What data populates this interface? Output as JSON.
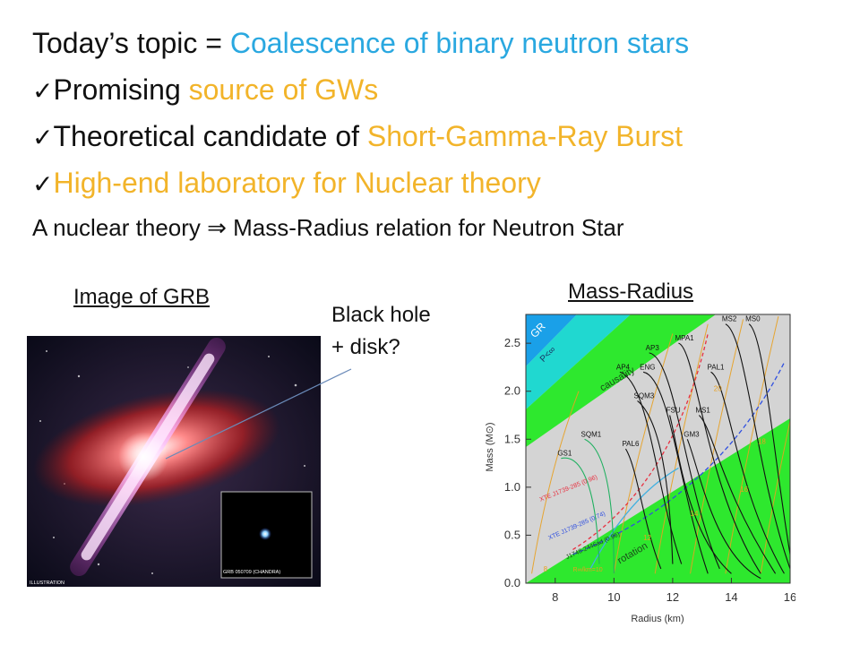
{
  "header": {
    "line1_prefix": "Today’s topic = ",
    "line1_highlight": "Coalescence of binary neutron stars",
    "line2_prefix": "Promising ",
    "line2_highlight": "source of GWs",
    "line3_prefix": "Theoretical candidate of ",
    "line3_highlight": "Short-Gamma-Ray Burst",
    "line4_highlight": "High-end laboratory for Nuclear theory",
    "line5": "A nuclear theory ⇒ Mass-Radius relation for Neutron Star",
    "check": "✓"
  },
  "grb": {
    "caption": "Image of GRB",
    "inset_label": "GRB 050709 (CHANDRA)",
    "illustration_label": "ILLUSTRATION"
  },
  "annotation": {
    "line1": "Black hole",
    "line2": "+ disk?"
  },
  "chart_data": {
    "type": "line",
    "title": "Mass-Radius",
    "xlabel": "Radius (km)",
    "ylabel": "Mass (M⊙)",
    "xlim": [
      7,
      16
    ],
    "ylim": [
      0,
      2.8
    ],
    "xticks": [
      8,
      10,
      12,
      14,
      16
    ],
    "yticks": [
      0.0,
      0.5,
      1.0,
      1.5,
      2.0,
      2.5
    ],
    "colors": {
      "background": "#d4d4d4",
      "green": "#2ee82e",
      "blue": "#1aa0e8",
      "gold": "#e8a020",
      "curve": "#111111"
    },
    "region_labels": [
      "GR",
      "P<∞",
      "causality",
      "rotation"
    ],
    "series": [
      {
        "name": "GS1",
        "points": [
          [
            8.2,
            1.3
          ],
          [
            8.9,
            1.35
          ],
          [
            9.4,
            1.0
          ],
          [
            9.5,
            0.2
          ]
        ]
      },
      {
        "name": "SQM1",
        "points": [
          [
            9.0,
            1.5
          ],
          [
            9.7,
            1.4
          ],
          [
            10.0,
            0.9
          ],
          [
            10.0,
            0.1
          ]
        ]
      },
      {
        "name": "PAL6",
        "points": [
          [
            10.4,
            1.4
          ],
          [
            10.8,
            1.2
          ],
          [
            11.0,
            0.6
          ],
          [
            11.6,
            0.15
          ]
        ]
      },
      {
        "name": "SQM3",
        "points": [
          [
            10.8,
            1.9
          ],
          [
            11.6,
            1.7
          ],
          [
            11.9,
            1.0
          ],
          [
            12.0,
            0.2
          ]
        ]
      },
      {
        "name": "FSU",
        "points": [
          [
            11.9,
            1.75
          ],
          [
            12.2,
            1.4
          ],
          [
            12.5,
            0.5
          ],
          [
            14.0,
            0.1
          ]
        ]
      },
      {
        "name": "GM3",
        "points": [
          [
            12.5,
            1.5
          ],
          [
            12.9,
            1.2
          ],
          [
            13.4,
            0.3
          ],
          [
            15.0,
            0.05
          ]
        ]
      },
      {
        "name": "AP4",
        "points": [
          [
            10.2,
            2.2
          ],
          [
            11.2,
            2.1
          ],
          [
            11.4,
            1.0
          ],
          [
            12.3,
            0.2
          ]
        ]
      },
      {
        "name": "ENG",
        "points": [
          [
            11.0,
            2.2
          ],
          [
            11.9,
            2.15
          ],
          [
            12.2,
            1.0
          ],
          [
            13.2,
            0.1
          ]
        ]
      },
      {
        "name": "AP3",
        "points": [
          [
            11.2,
            2.4
          ],
          [
            12.1,
            2.35
          ],
          [
            12.4,
            1.0
          ],
          [
            13.6,
            0.15
          ]
        ]
      },
      {
        "name": "MS1",
        "points": [
          [
            12.9,
            1.75
          ],
          [
            13.4,
            1.6
          ],
          [
            13.6,
            1.0
          ],
          [
            15.5,
            0.1
          ]
        ]
      },
      {
        "name": "MPA1",
        "points": [
          [
            12.2,
            2.5
          ],
          [
            12.8,
            2.45
          ],
          [
            13.1,
            1.0
          ],
          [
            15.0,
            0.1
          ]
        ]
      },
      {
        "name": "PAL1",
        "points": [
          [
            13.3,
            2.2
          ],
          [
            13.9,
            2.1
          ],
          [
            14.1,
            1.0
          ],
          [
            15.8,
            0.1
          ]
        ]
      },
      {
        "name": "MS2",
        "points": [
          [
            13.8,
            2.7
          ],
          [
            14.5,
            2.6
          ],
          [
            14.8,
            1.2
          ],
          [
            16.0,
            0.15
          ]
        ]
      },
      {
        "name": "MS0",
        "points": [
          [
            14.6,
            2.7
          ],
          [
            15.1,
            2.6
          ],
          [
            15.4,
            1.4
          ],
          [
            16.0,
            0.3
          ]
        ]
      }
    ],
    "constraint_labels": [
      "XTE J1739-285 (0.96)",
      "XTE J1739-285 (0.74)",
      "J1748-2446ad (0.96)"
    ],
    "contour_labels": [
      "20",
      "18",
      "16",
      "14",
      "12",
      "8"
    ],
    "contour_axis_label": "R∞/km=10"
  }
}
